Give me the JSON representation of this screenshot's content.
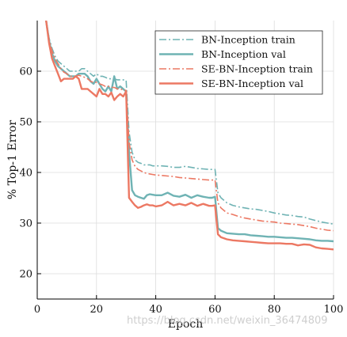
{
  "chart_data": {
    "type": "line",
    "xlabel": "Epoch",
    "ylabel": "% Top-1 Error",
    "xlim": [
      0,
      100
    ],
    "ylim": [
      15,
      70
    ],
    "xticks": [
      0,
      20,
      40,
      60,
      80,
      100
    ],
    "yticks": [
      20,
      30,
      40,
      50,
      60
    ],
    "grid": true,
    "legend_position": "top-right",
    "series": [
      {
        "name": "BN-Inception train",
        "color": "#6fb3b4",
        "style": "dashdot",
        "x": [
          3,
          4,
          5,
          6,
          7,
          8,
          9,
          10,
          11,
          12,
          13,
          14,
          15,
          16,
          17,
          18,
          19,
          20,
          21,
          22,
          23,
          24,
          25,
          26,
          27,
          28,
          29,
          30,
          31,
          32,
          33,
          34,
          35,
          36,
          37,
          38,
          39,
          40,
          42,
          44,
          46,
          48,
          50,
          52,
          54,
          56,
          58,
          59,
          60,
          61,
          62,
          64,
          66,
          68,
          70,
          72,
          74,
          76,
          78,
          80,
          82,
          84,
          86,
          88,
          90,
          92,
          94,
          96,
          98,
          100
        ],
        "y": [
          70.0,
          66.5,
          64.5,
          63.0,
          62.0,
          61.5,
          61.0,
          60.5,
          60.0,
          60.0,
          60.0,
          60.0,
          60.5,
          60.5,
          60.0,
          59.5,
          59.0,
          59.5,
          59.0,
          59.0,
          58.8,
          58.5,
          58.5,
          58.5,
          58.3,
          58.3,
          58.3,
          58.2,
          48.0,
          44.0,
          42.5,
          42.0,
          41.8,
          41.5,
          41.5,
          41.5,
          41.3,
          41.3,
          41.3,
          41.2,
          41.0,
          41.0,
          41.2,
          41.0,
          40.8,
          40.7,
          40.6,
          40.6,
          40.6,
          36.0,
          35.0,
          34.0,
          33.5,
          33.2,
          33.0,
          32.8,
          32.7,
          32.5,
          32.3,
          32.0,
          31.8,
          31.6,
          31.5,
          31.3,
          31.2,
          30.8,
          30.5,
          30.2,
          30.0,
          29.8
        ]
      },
      {
        "name": "BN-Inception val",
        "color": "#6fb3b4",
        "style": "solid",
        "x": [
          3,
          4,
          5,
          6,
          7,
          8,
          9,
          10,
          11,
          12,
          13,
          14,
          15,
          16,
          17,
          18,
          19,
          20,
          21,
          22,
          23,
          24,
          25,
          26,
          27,
          28,
          29,
          30,
          31,
          32,
          33,
          34,
          35,
          36,
          37,
          38,
          39,
          40,
          42,
          44,
          46,
          48,
          50,
          52,
          54,
          56,
          58,
          59,
          60,
          61,
          62,
          64,
          66,
          68,
          70,
          72,
          74,
          76,
          78,
          80,
          82,
          84,
          86,
          88,
          90,
          92,
          94,
          96,
          98,
          100
        ],
        "y": [
          70.0,
          66.0,
          63.5,
          62.0,
          61.0,
          60.5,
          60.0,
          59.5,
          59.0,
          59.0,
          59.0,
          59.5,
          59.5,
          59.5,
          59.0,
          58.0,
          57.5,
          58.5,
          57.5,
          56.5,
          56.0,
          57.0,
          56.0,
          59.0,
          56.5,
          57.0,
          56.5,
          56.0,
          44.0,
          36.5,
          35.5,
          35.2,
          35.0,
          34.8,
          35.5,
          35.7,
          35.6,
          35.5,
          35.5,
          36.0,
          35.4,
          35.2,
          35.6,
          35.0,
          35.5,
          35.2,
          35.0,
          35.0,
          35.2,
          29.0,
          28.5,
          28.0,
          27.9,
          27.8,
          27.8,
          27.6,
          27.5,
          27.4,
          27.3,
          27.3,
          27.2,
          27.1,
          27.1,
          27.0,
          26.9,
          26.8,
          26.6,
          26.5,
          26.5,
          26.4
        ]
      },
      {
        "name": "SE-BN-Inception train",
        "color": "#ec7863",
        "style": "dashdot",
        "x": [
          3,
          4,
          5,
          6,
          7,
          8,
          9,
          10,
          11,
          12,
          13,
          14,
          15,
          16,
          17,
          18,
          19,
          20,
          21,
          22,
          23,
          24,
          25,
          26,
          27,
          28,
          29,
          30,
          31,
          32,
          33,
          34,
          35,
          36,
          37,
          38,
          39,
          40,
          42,
          44,
          46,
          48,
          50,
          52,
          54,
          56,
          58,
          59,
          60,
          61,
          62,
          64,
          66,
          68,
          70,
          72,
          74,
          76,
          78,
          80,
          82,
          84,
          86,
          88,
          90,
          92,
          94,
          96,
          98,
          100
        ],
        "y": [
          70.0,
          66.0,
          64.0,
          62.5,
          61.5,
          60.5,
          59.8,
          59.5,
          59.0,
          59.0,
          59.0,
          59.2,
          59.0,
          58.8,
          58.5,
          58.0,
          57.8,
          57.8,
          57.5,
          57.3,
          57.0,
          57.0,
          56.8,
          56.8,
          56.5,
          56.5,
          56.3,
          56.2,
          46.0,
          42.5,
          41.2,
          40.6,
          40.3,
          40.0,
          39.8,
          39.7,
          39.6,
          39.5,
          39.4,
          39.3,
          39.2,
          39.0,
          38.9,
          38.8,
          38.7,
          38.6,
          38.5,
          38.5,
          38.5,
          34.0,
          33.0,
          32.0,
          31.7,
          31.3,
          31.0,
          30.8,
          30.6,
          30.4,
          30.3,
          30.2,
          30.0,
          29.9,
          29.8,
          29.7,
          29.5,
          29.3,
          29.0,
          28.8,
          28.6,
          28.5
        ]
      },
      {
        "name": "SE-BN-Inception val",
        "color": "#ec7863",
        "style": "solid",
        "x": [
          3,
          4,
          5,
          6,
          7,
          8,
          9,
          10,
          11,
          12,
          13,
          14,
          15,
          16,
          17,
          18,
          19,
          20,
          21,
          22,
          23,
          24,
          25,
          26,
          27,
          28,
          29,
          30,
          31,
          32,
          33,
          34,
          35,
          36,
          37,
          38,
          39,
          40,
          42,
          44,
          46,
          48,
          50,
          52,
          54,
          56,
          58,
          59,
          60,
          61,
          62,
          64,
          66,
          68,
          70,
          72,
          74,
          76,
          78,
          80,
          82,
          84,
          86,
          88,
          90,
          92,
          94,
          96,
          98,
          100
        ],
        "y": [
          70.0,
          65.5,
          62.5,
          61.0,
          59.5,
          58.0,
          58.5,
          58.5,
          58.5,
          58.5,
          59.0,
          58.5,
          56.5,
          56.5,
          56.5,
          56.0,
          55.5,
          55.0,
          56.5,
          55.5,
          55.5,
          55.0,
          55.8,
          54.3,
          55.0,
          55.5,
          55.0,
          56.0,
          35.0,
          34.2,
          33.5,
          33.0,
          33.2,
          33.5,
          33.7,
          33.5,
          33.5,
          33.3,
          33.5,
          34.2,
          33.5,
          33.8,
          33.5,
          34.0,
          33.4,
          33.8,
          33.4,
          33.4,
          33.5,
          27.8,
          27.2,
          26.8,
          26.6,
          26.5,
          26.4,
          26.3,
          26.2,
          26.1,
          26.0,
          26.0,
          26.0,
          25.9,
          25.9,
          25.6,
          25.8,
          25.7,
          25.2,
          25.0,
          24.9,
          24.8
        ]
      }
    ]
  },
  "watermark": "https://blog.csdn.net/weixin_36474809"
}
